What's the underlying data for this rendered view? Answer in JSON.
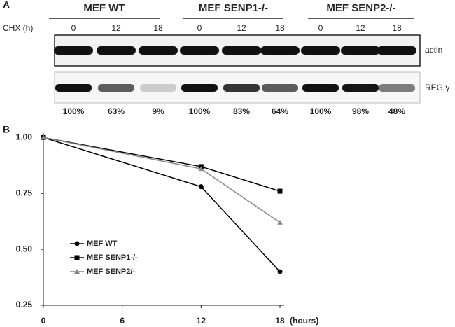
{
  "panel_a": {
    "label": "A",
    "row_label": "CHX (h)",
    "groups": [
      {
        "name": "MEF WT",
        "times": [
          0,
          12,
          18
        ]
      },
      {
        "name": "MEF SENP1-/-",
        "times": [
          0,
          12,
          18
        ]
      },
      {
        "name": "MEF SENP2-/-",
        "times": [
          0,
          12,
          18
        ]
      }
    ],
    "bands": [
      "actin",
      "REG γ"
    ],
    "quantification": {
      "values": [
        100,
        63,
        9,
        100,
        83,
        64,
        100,
        98,
        48
      ],
      "value_labels": [
        "100%",
        "63%",
        "9%",
        "100%",
        "83%",
        "64%",
        "100%",
        "98%",
        "48%"
      ]
    }
  },
  "chart_data": {
    "type": "line",
    "panel_label": "B",
    "x_label": "(hours)",
    "x": [
      0,
      12,
      18
    ],
    "xlim": [
      0,
      18
    ],
    "xticks": [
      0,
      6,
      12,
      18
    ],
    "ylim": [
      0.25,
      1.02
    ],
    "yticks": [
      {
        "value": 0.25,
        "label": "0.25"
      },
      {
        "value": 0.5,
        "label": "0.50"
      },
      {
        "value": 0.75,
        "label": "0.75"
      },
      {
        "value": 1,
        "label": "1.00"
      }
    ],
    "series": [
      {
        "name": "MEF WT",
        "color": "#000000",
        "marker": "circle",
        "values": [
          1.0,
          0.78,
          0.4
        ]
      },
      {
        "name": "MEF SENP1-/-",
        "color": "#000000",
        "marker": "square",
        "values": [
          1.0,
          0.87,
          0.76
        ]
      },
      {
        "name": "MEF SENP2/-",
        "color": "#888888",
        "marker": "triangle",
        "values": [
          1.0,
          0.86,
          0.62
        ]
      }
    ]
  }
}
